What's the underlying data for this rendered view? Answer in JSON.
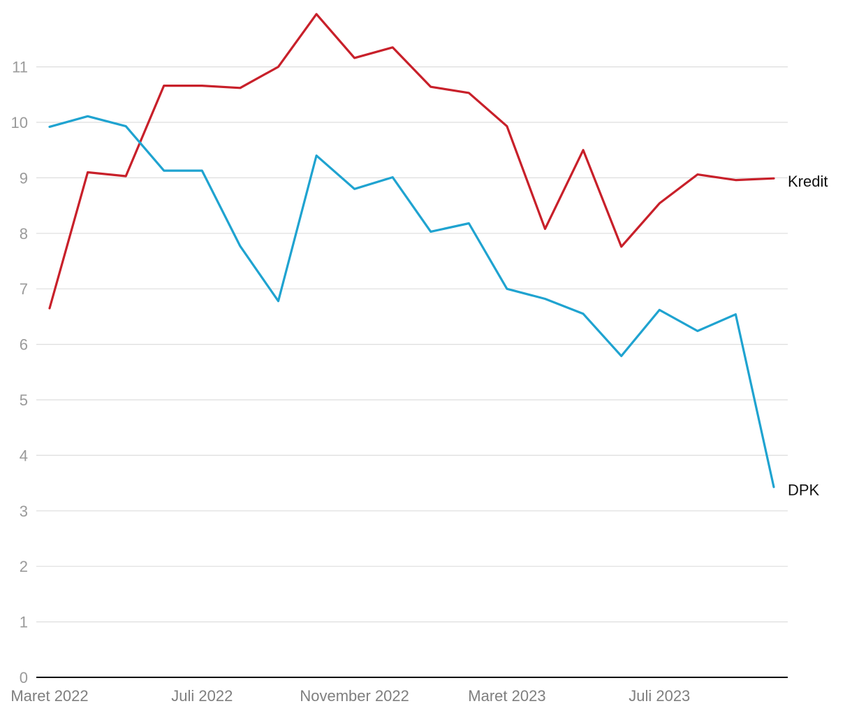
{
  "chart_data": {
    "type": "line",
    "title": "",
    "xlabel": "",
    "ylabel": "",
    "ylim": [
      0,
      12
    ],
    "yticks": [
      0,
      1,
      2,
      3,
      4,
      5,
      6,
      7,
      8,
      9,
      10,
      11
    ],
    "grid": true,
    "legend": "direct labels at line ends (right)",
    "x": [
      "2022-03",
      "2022-04",
      "2022-05",
      "2022-06",
      "2022-07",
      "2022-08",
      "2022-09",
      "2022-10",
      "2022-11",
      "2022-12",
      "2023-01",
      "2023-02",
      "2023-03",
      "2023-04",
      "2023-05",
      "2023-06",
      "2023-07",
      "2023-08",
      "2023-09",
      "2023-10"
    ],
    "xtick_labels": [
      {
        "x": "2022-03",
        "label": "Maret 2022"
      },
      {
        "x": "2022-07",
        "label": "Juli 2022"
      },
      {
        "x": "2022-11",
        "label": "November 2022"
      },
      {
        "x": "2023-03",
        "label": "Maret 2023"
      },
      {
        "x": "2023-07",
        "label": "Juli 2023"
      }
    ],
    "series": [
      {
        "name": "Kredit",
        "color": "#c8202a",
        "values": [
          6.65,
          9.1,
          9.03,
          10.66,
          10.66,
          10.62,
          11.0,
          11.95,
          11.16,
          11.35,
          10.64,
          10.53,
          9.93,
          8.08,
          9.5,
          7.76,
          8.54,
          9.06,
          8.96,
          8.99
        ]
      },
      {
        "name": "DPK",
        "color": "#1fa3d0",
        "values": [
          9.92,
          10.11,
          9.93,
          9.13,
          9.13,
          7.77,
          6.78,
          9.4,
          8.8,
          9.01,
          8.03,
          8.18,
          7.0,
          6.82,
          6.55,
          5.79,
          6.62,
          6.24,
          6.54,
          3.43
        ]
      }
    ]
  }
}
